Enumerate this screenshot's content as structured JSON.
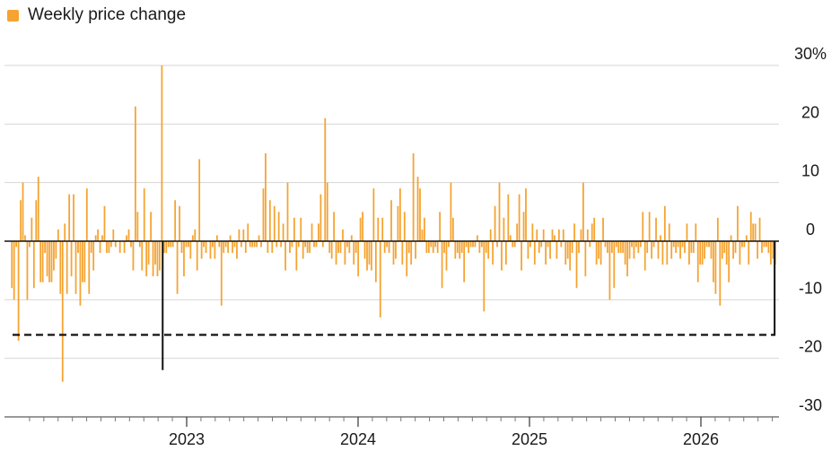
{
  "chart_data": {
    "type": "bar",
    "legend": {
      "label": "Weekly price change",
      "color": "#f5a331",
      "placement": "top-left"
    },
    "y_ticks": [
      {
        "value": 30,
        "label": "30%"
      },
      {
        "value": 20,
        "label": "20"
      },
      {
        "value": 10,
        "label": "10"
      },
      {
        "value": 0,
        "label": "0"
      },
      {
        "value": -10,
        "label": "-10"
      },
      {
        "value": -20,
        "label": "-20"
      },
      {
        "value": -30,
        "label": "-30"
      }
    ],
    "ylim": [
      -30,
      30
    ],
    "x_ticks": [
      {
        "value": 2023.0,
        "label": "2023"
      },
      {
        "value": 2024.0,
        "label": "2024"
      },
      {
        "value": 2025.0,
        "label": "2025"
      },
      {
        "value": 2026.0,
        "label": "2026"
      }
    ],
    "xlim": [
      2022.0,
      2026.5
    ],
    "grid": true,
    "reference_line": {
      "value": -16,
      "style": "dashed"
    },
    "markers": [
      {
        "x": 2022.86,
        "value": -22
      },
      {
        "x": 2026.43,
        "value": -16
      }
    ],
    "values": [
      -8,
      -10,
      -1,
      -17,
      7,
      10,
      1,
      -10,
      -1,
      4,
      -8,
      7,
      11,
      -7,
      -7,
      -2,
      -6,
      -7,
      -7,
      -5,
      -3,
      2,
      -9,
      -24,
      3,
      -9,
      8,
      -6,
      8,
      -9,
      -2,
      -11,
      -7,
      -7,
      9,
      -9,
      -2,
      -5,
      1,
      2,
      -2,
      1,
      6,
      -2,
      -2,
      -1,
      2,
      -1,
      0,
      -2,
      0,
      -2,
      1,
      2,
      -1,
      -5,
      23,
      5,
      -1,
      -5,
      9,
      -6,
      -4,
      5,
      -6,
      -4,
      -6,
      -5,
      30,
      -2,
      -2,
      -1,
      -1,
      -1,
      7,
      -9,
      6,
      -2,
      -6,
      -1,
      -1,
      -3,
      1,
      2,
      -5,
      14,
      -3,
      -1,
      -2,
      0,
      -3,
      -1,
      -3,
      1,
      -1,
      -11,
      -2,
      -1,
      -2,
      1,
      -2,
      -1,
      -3,
      2,
      -1,
      2,
      -2,
      3,
      -1,
      -1,
      -1,
      -1,
      1,
      -1,
      9,
      15,
      -2,
      7,
      -2,
      6,
      -1,
      5,
      -1,
      3,
      -5,
      10,
      -2,
      -1,
      4,
      -5,
      -1,
      4,
      -3,
      -1,
      -2,
      -2,
      3,
      -1,
      -1,
      3,
      8,
      -1,
      21,
      10,
      -2,
      -3,
      5,
      -4,
      -2,
      -2,
      2,
      -4,
      -1,
      -2,
      1,
      -4,
      -2,
      -6,
      4,
      5,
      -3,
      -5,
      -4,
      -5,
      9,
      -7,
      4,
      -13,
      4,
      -2,
      -1,
      -2,
      7,
      -4,
      -3,
      6,
      9,
      -4,
      5,
      -6,
      -2,
      -4,
      15,
      -3,
      11,
      9,
      2,
      4,
      -2,
      -2,
      -1,
      -2,
      -1,
      -2,
      5,
      -8,
      -2,
      -5,
      -1,
      10,
      4,
      -3,
      -2,
      -3,
      -2,
      -7,
      -1,
      -2,
      -1,
      -1,
      -1,
      1,
      -2,
      -1,
      -12,
      -2,
      -3,
      2,
      -4,
      6,
      -1,
      10,
      -5,
      4,
      -4,
      8,
      1,
      -1,
      -1,
      3,
      8,
      -5,
      5,
      9,
      -3,
      -1,
      3,
      -4,
      2,
      -2,
      -1,
      2,
      -4,
      -1,
      -3,
      2,
      1,
      -3,
      2,
      -1,
      2,
      -4,
      -3,
      -5,
      -2,
      3,
      -8,
      -2,
      2,
      10,
      -6,
      2,
      -1,
      3,
      4,
      -4,
      -3,
      -4,
      4,
      -1,
      -2,
      -10,
      -2,
      -8,
      -1,
      -2,
      -2,
      -2,
      -4,
      -6,
      -3,
      -1,
      -3,
      -1,
      -2,
      -1,
      5,
      -5,
      -2,
      5,
      -3,
      -1,
      4,
      -3,
      1,
      -4,
      6,
      -4,
      3,
      -3,
      -1,
      -2,
      -1,
      -3,
      -1,
      -2,
      3,
      -4,
      -2,
      -2,
      3,
      -7,
      -4,
      -4,
      -3,
      -1,
      -1,
      -3,
      -7,
      -9,
      4,
      -11,
      -3,
      -2,
      -4,
      -7,
      1,
      -3,
      -2,
      6,
      -4,
      -1,
      -1,
      1,
      -4,
      5,
      3,
      3,
      -3,
      4,
      -2,
      -1,
      -1,
      -2,
      -4,
      -3,
      -4
    ]
  }
}
